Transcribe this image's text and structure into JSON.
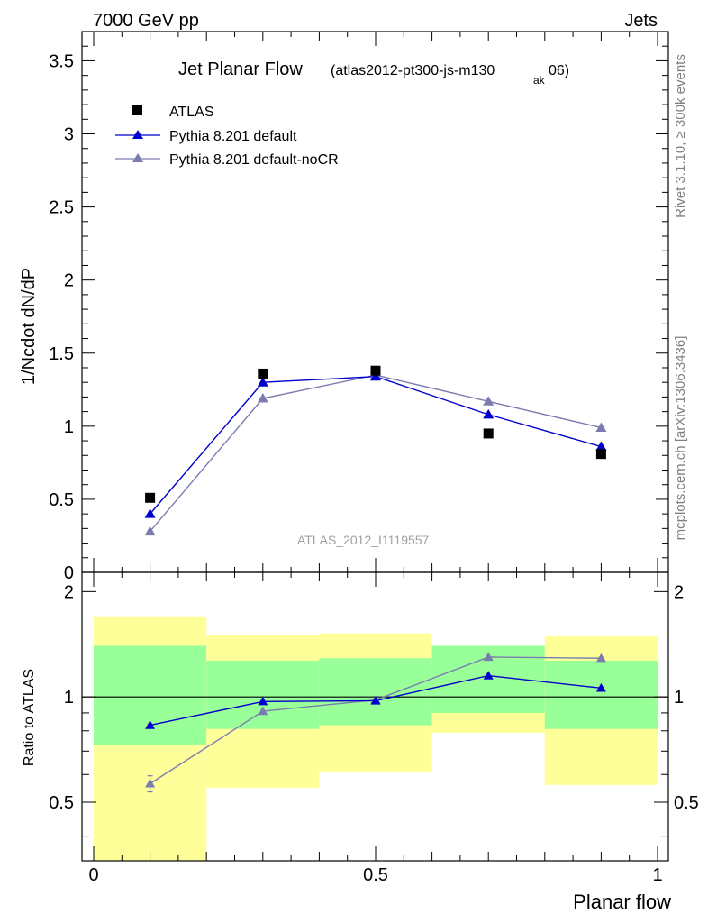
{
  "header": {
    "left": "7000 GeV pp",
    "right": "Jets"
  },
  "side_labels": {
    "rivet": "Rivet 3.1.10, ≥ 300k events",
    "mcplots": "mcplots.cern.ch [arXiv:1306.3436]"
  },
  "colors": {
    "data": "#000000",
    "default": "#0000cc",
    "nocr": "#7b7bb0",
    "band_outer": "#ffff99",
    "band_inner": "#99ff99"
  },
  "chart_data": [
    {
      "type": "scatter",
      "title": "Jet Planar Flow",
      "title_suffix": "(atlas2012-pt300-js-m130",
      "title_subscript": "ak",
      "title_suffix_end": "06)",
      "ylabel": "1/Ncdot dN/dP",
      "watermark": "ATLAS_2012_I1119557",
      "xlim": [
        0,
        1
      ],
      "ylim": [
        0,
        3.7
      ],
      "yticks": [
        0,
        0.5,
        1,
        1.5,
        2,
        2.5,
        3,
        3.5
      ],
      "ytick_labels": [
        "0",
        "0.5",
        "1",
        "1.5",
        "2",
        "2.5",
        "3",
        "3.5"
      ],
      "legend_position": "top-left",
      "x": [
        0.1,
        0.3,
        0.5,
        0.7,
        0.9
      ],
      "series": [
        {
          "name": "ATLAS",
          "marker": "square",
          "values": [
            0.51,
            1.36,
            1.38,
            0.95,
            0.81
          ]
        },
        {
          "name": "Pythia 8.201 default",
          "marker": "triangle",
          "values": [
            0.4,
            1.3,
            1.34,
            1.08,
            0.86
          ]
        },
        {
          "name": "Pythia 8.201 default-noCR",
          "marker": "triangle",
          "values": [
            0.28,
            1.19,
            1.35,
            1.17,
            0.99
          ]
        }
      ]
    },
    {
      "type": "scatter",
      "title": "",
      "ylabel": "Ratio to ATLAS",
      "xlabel": "Planar flow",
      "xlim": [
        0,
        1
      ],
      "ylim": [
        0.34,
        2.27
      ],
      "xticks": [
        0,
        0.5,
        1
      ],
      "xtick_labels": [
        "0",
        "0.5",
        "1"
      ],
      "yticks": [
        0.5,
        1,
        2
      ],
      "ytick_labels": [
        "0.5",
        "1",
        "2"
      ],
      "bands": {
        "bin_edges": [
          0,
          0.2,
          0.4,
          0.6,
          0.8,
          1.0
        ],
        "outer_low": [
          0.34,
          0.55,
          0.61,
          0.79,
          0.56
        ],
        "outer_high": [
          1.7,
          1.5,
          1.52,
          1.4,
          1.49
        ],
        "inner_low": [
          0.73,
          0.81,
          0.83,
          0.9,
          0.81
        ],
        "inner_high": [
          1.4,
          1.27,
          1.29,
          1.4,
          1.27
        ]
      },
      "x": [
        0.1,
        0.3,
        0.5,
        0.7,
        0.9
      ],
      "series": [
        {
          "name": "Pythia 8.201 default",
          "values": [
            0.83,
            0.97,
            0.975,
            1.15,
            1.06
          ]
        },
        {
          "name": "Pythia 8.201 default-noCR",
          "values": [
            0.565,
            0.91,
            0.98,
            1.3,
            1.29
          ],
          "errors": [
            0.03,
            0,
            0,
            0,
            0
          ]
        }
      ]
    }
  ]
}
